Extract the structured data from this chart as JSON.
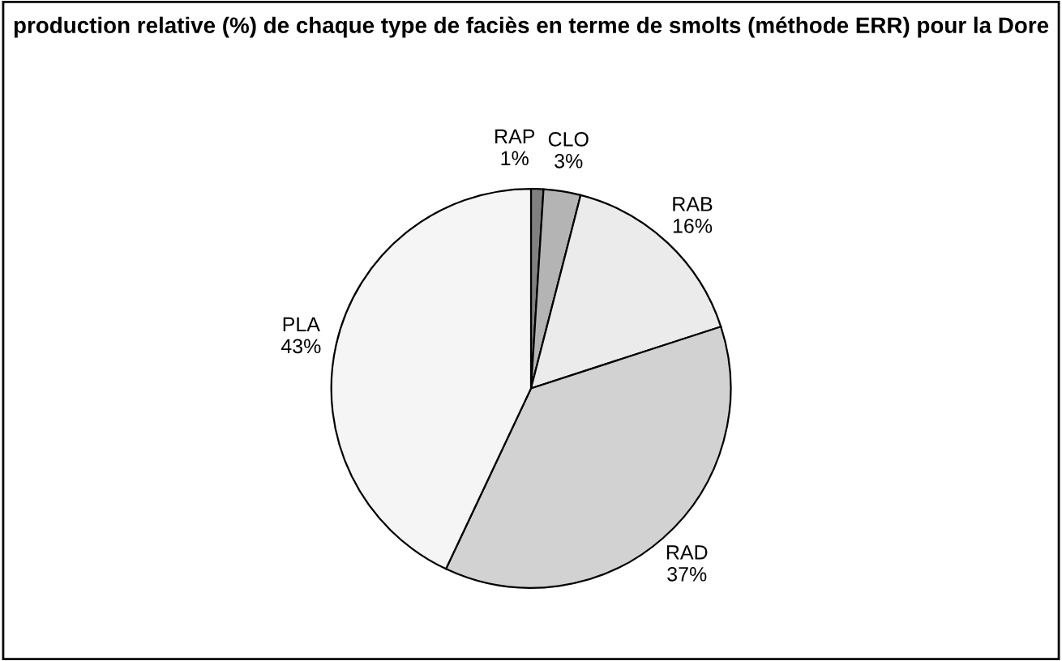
{
  "chart_data": {
    "type": "pie",
    "title": "production relative (%) de chaque type de faciès en terme de smolts (méthode ERR) pour la Dore",
    "categories": [
      "RAP",
      "CLO",
      "RAB",
      "RAD",
      "PLA"
    ],
    "values": [
      1,
      3,
      16,
      37,
      43
    ],
    "value_labels": [
      "1%",
      "3%",
      "16%",
      "37%",
      "43%"
    ],
    "colors": [
      "#808080",
      "#b4b4b4",
      "#ebebeb",
      "#d2d2d2",
      "#f5f5f5"
    ],
    "legend": false
  }
}
